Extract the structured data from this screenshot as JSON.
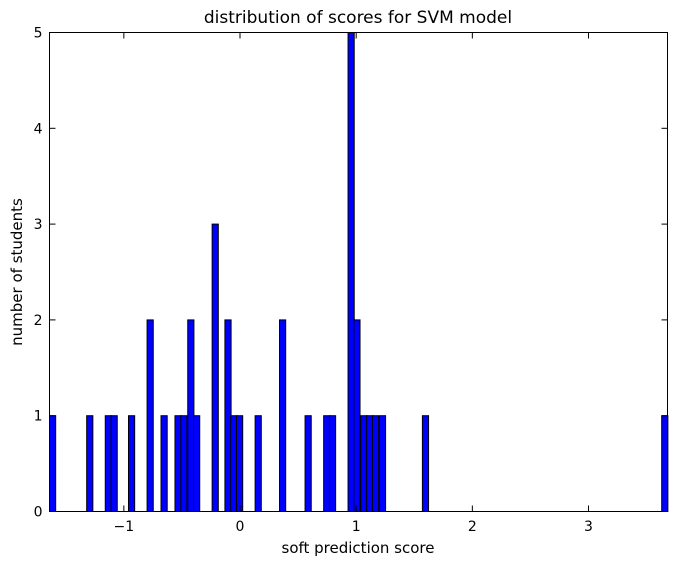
{
  "chart_data": {
    "type": "bar",
    "title": "distribution of scores for SVM model",
    "xlabel": "soft prediction score",
    "ylabel": "number of students",
    "xlim": [
      -1.64,
      3.68
    ],
    "ylim": [
      0,
      5
    ],
    "xticks": [
      -1,
      0,
      1,
      2,
      3
    ],
    "xtick_labels": [
      "−1",
      "0",
      "1",
      "2",
      "3"
    ],
    "yticks": [
      0,
      1,
      2,
      3,
      4,
      5
    ],
    "ytick_labels": [
      "0",
      "1",
      "2",
      "3",
      "4",
      "5"
    ],
    "grid": false,
    "bar_color": "#0000ff",
    "bin_width": 0.0532,
    "bins": [
      {
        "x": -1.64,
        "count": 1
      },
      {
        "x": -1.32,
        "count": 1
      },
      {
        "x": -1.16,
        "count": 1
      },
      {
        "x": -1.11,
        "count": 1
      },
      {
        "x": -0.96,
        "count": 1
      },
      {
        "x": -0.8,
        "count": 2
      },
      {
        "x": -0.68,
        "count": 1
      },
      {
        "x": -0.56,
        "count": 1
      },
      {
        "x": -0.51,
        "count": 1
      },
      {
        "x": -0.45,
        "count": 2
      },
      {
        "x": -0.4,
        "count": 1
      },
      {
        "x": -0.24,
        "count": 3
      },
      {
        "x": -0.13,
        "count": 2
      },
      {
        "x": -0.08,
        "count": 1
      },
      {
        "x": -0.03,
        "count": 1
      },
      {
        "x": 0.13,
        "count": 1
      },
      {
        "x": 0.34,
        "count": 2
      },
      {
        "x": 0.56,
        "count": 1
      },
      {
        "x": 0.72,
        "count": 1
      },
      {
        "x": 0.77,
        "count": 1
      },
      {
        "x": 0.93,
        "count": 5
      },
      {
        "x": 0.98,
        "count": 2
      },
      {
        "x": 1.04,
        "count": 1
      },
      {
        "x": 1.09,
        "count": 1
      },
      {
        "x": 1.14,
        "count": 1
      },
      {
        "x": 1.2,
        "count": 1
      },
      {
        "x": 1.57,
        "count": 1
      },
      {
        "x": 3.63,
        "count": 1
      }
    ]
  }
}
